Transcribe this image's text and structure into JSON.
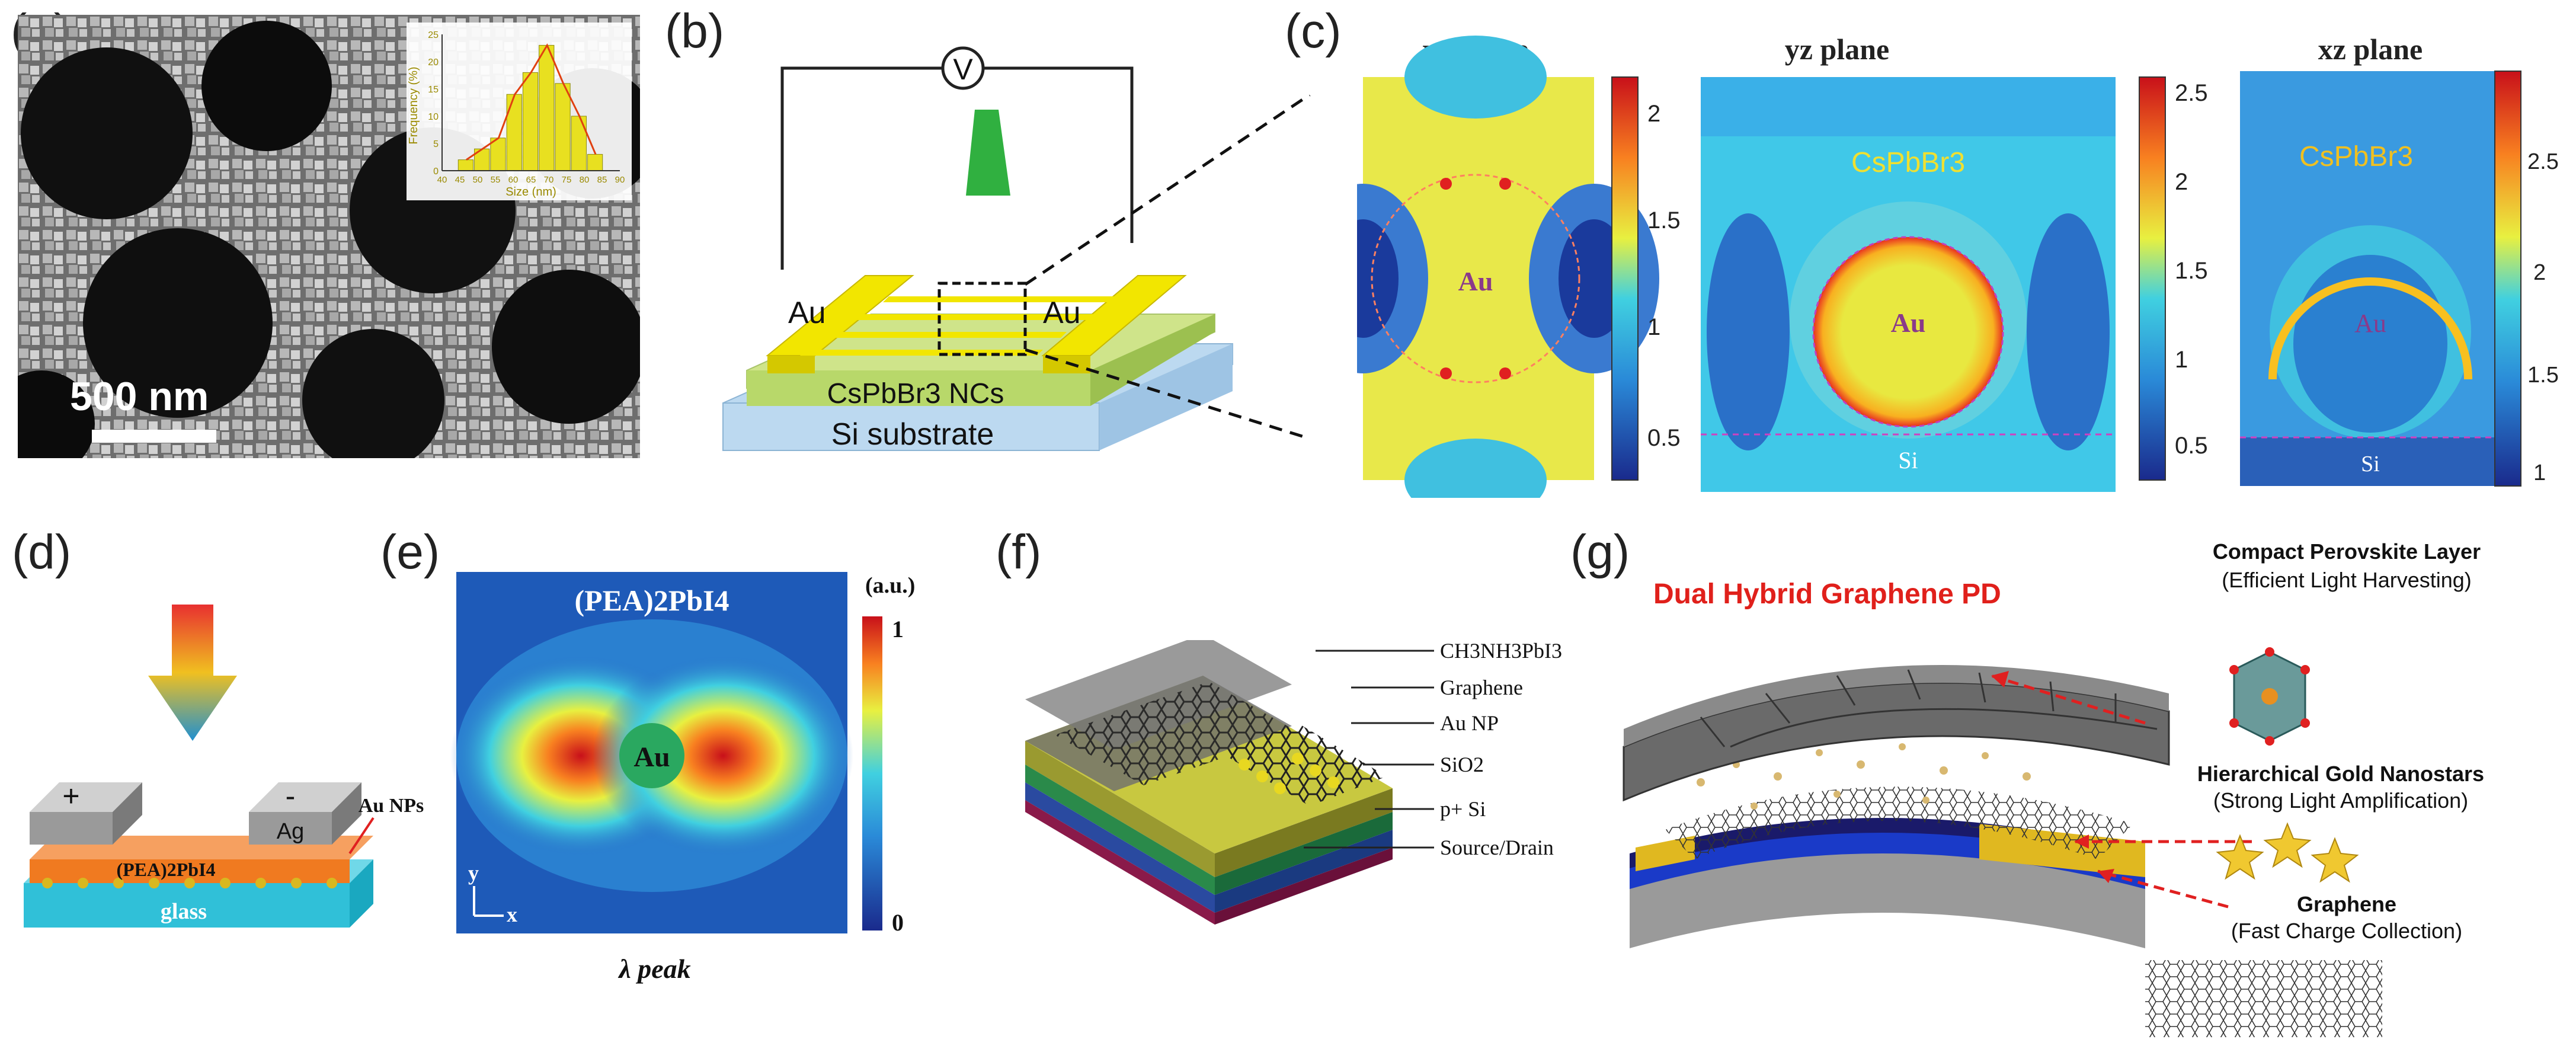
{
  "panels": {
    "a": {
      "label": "(a)",
      "scale_bar": "500 nm",
      "inset": {
        "ylabel": "Frequency (%)",
        "xlabel": "Size (nm)",
        "yticks": [
          "0",
          "5",
          "10",
          "15",
          "20",
          "25"
        ],
        "xticks": [
          "40",
          "45",
          "50",
          "55",
          "60",
          "65",
          "70",
          "75",
          "80",
          "85",
          "90"
        ],
        "values": [
          2,
          4,
          6,
          14,
          18,
          23,
          16,
          10,
          3
        ]
      }
    },
    "b": {
      "label": "(b)",
      "voltmeter": "V",
      "electrode_left": "Au",
      "electrode_right": "Au",
      "layer_ncs": "CsPbBr3 NCs",
      "substrate": "Si substrate"
    },
    "c": {
      "label": "(c)",
      "maps": [
        {
          "title": "xy plane",
          "center_label": "Au",
          "colorbar_ticks": [
            "2",
            "1.5",
            "1",
            "0.5"
          ]
        },
        {
          "title": "yz plane",
          "material": "CsPbBr3",
          "center_label": "Au",
          "bottom_label": "Si",
          "colorbar_ticks": [
            "2.5",
            "2",
            "1.5",
            "1",
            "0.5"
          ]
        },
        {
          "title": "xz plane",
          "material": "CsPbBr3",
          "center_label": "Au",
          "bottom_label": "Si",
          "colorbar_ticks": [
            "2.5",
            "2",
            "1.5",
            "1"
          ]
        }
      ]
    },
    "d": {
      "label": "(d)",
      "plus": "+",
      "minus": "-",
      "electrode": "Ag",
      "np_label": "Au NPs",
      "layer": "(PEA)2PbI4",
      "substrate": "glass"
    },
    "e": {
      "label": "(e)",
      "title": "(PEA)2PbI4",
      "center": "Au",
      "unit": "(a.u.)",
      "cb_max": "1",
      "cb_min": "0",
      "axis_y": "y",
      "axis_x": "x",
      "caption": "λ peak"
    },
    "f": {
      "label": "(f)",
      "layers": [
        "CH3NH3PbI3",
        "Graphene",
        "Au NP",
        "SiO2",
        "p+ Si",
        "Source/Drain"
      ]
    },
    "g": {
      "label": "(g)",
      "title": "Dual Hybrid Graphene PD",
      "items": [
        {
          "name": "Compact Perovskite Layer",
          "desc": "(Efficient Light Harvesting)"
        },
        {
          "name": "Hierarchical Gold Nanostars",
          "desc": "(Strong Light Amplification)"
        },
        {
          "name": "Graphene",
          "desc": "(Fast Charge Collection)"
        }
      ]
    }
  },
  "colors": {
    "gold": "#f2e600",
    "title_red": "#e0201b",
    "jet_blue": "#1a2a8c",
    "jet_red": "#c8101a"
  }
}
